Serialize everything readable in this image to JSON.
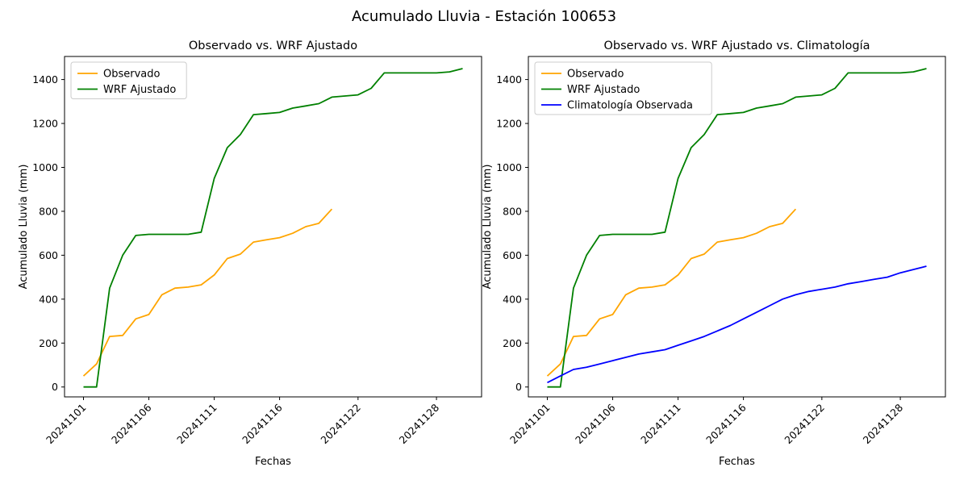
{
  "figure_title": "Acumulado Lluvia - Estación 100653",
  "chart_data": [
    {
      "type": "line",
      "title": "Observado vs. WRF Ajustado",
      "xlabel": "Fechas",
      "ylabel": "Acumulado Lluvia (mm)",
      "grid": false,
      "legend_position": "upper left",
      "ylim": [
        -45,
        1505
      ],
      "y_ticks": [
        0,
        200,
        400,
        600,
        800,
        1000,
        1200,
        1400
      ],
      "x": [
        "20241101",
        "20241102",
        "20241103",
        "20241104",
        "20241105",
        "20241106",
        "20241107",
        "20241108",
        "20241109",
        "20241110",
        "20241111",
        "20241112",
        "20241113",
        "20241114",
        "20241115",
        "20241116",
        "20241117",
        "20241118",
        "20241119",
        "20241120",
        "20241121",
        "20241122",
        "20241123",
        "20241124",
        "20241125",
        "20241126",
        "20241127",
        "20241128",
        "20241129",
        "20241130"
      ],
      "x_ticks": [
        {
          "label": "20241101",
          "index": 0
        },
        {
          "label": "20241106",
          "index": 5
        },
        {
          "label": "20241111",
          "index": 10
        },
        {
          "label": "20241116",
          "index": 15
        },
        {
          "label": "20241122",
          "index": 21
        },
        {
          "label": "20241128",
          "index": 27
        }
      ],
      "series": [
        {
          "name": "Observado",
          "color": "#FFA500",
          "values": [
            50,
            105,
            230,
            235,
            310,
            330,
            420,
            450,
            455,
            465,
            510,
            585,
            605,
            660,
            670,
            680,
            700,
            730,
            745,
            810
          ]
        },
        {
          "name": "WRF Ajustado",
          "color": "#008000",
          "values": [
            0,
            0,
            450,
            600,
            690,
            695,
            695,
            695,
            695,
            705,
            950,
            1090,
            1150,
            1240,
            1245,
            1250,
            1270,
            1280,
            1290,
            1320,
            1325,
            1330,
            1360,
            1430,
            1430,
            1430,
            1430,
            1430,
            1435,
            1450
          ]
        }
      ]
    },
    {
      "type": "line",
      "title": "Observado vs. WRF Ajustado vs. Climatología",
      "xlabel": "Fechas",
      "ylabel": "Acumulado Lluvia (mm)",
      "grid": false,
      "legend_position": "upper left",
      "ylim": [
        -45,
        1505
      ],
      "y_ticks": [
        0,
        200,
        400,
        600,
        800,
        1000,
        1200,
        1400
      ],
      "x": [
        "20241101",
        "20241102",
        "20241103",
        "20241104",
        "20241105",
        "20241106",
        "20241107",
        "20241108",
        "20241109",
        "20241110",
        "20241111",
        "20241112",
        "20241113",
        "20241114",
        "20241115",
        "20241116",
        "20241117",
        "20241118",
        "20241119",
        "20241120",
        "20241121",
        "20241122",
        "20241123",
        "20241124",
        "20241125",
        "20241126",
        "20241127",
        "20241128",
        "20241129",
        "20241130"
      ],
      "x_ticks": [
        {
          "label": "20241101",
          "index": 0
        },
        {
          "label": "20241106",
          "index": 5
        },
        {
          "label": "20241111",
          "index": 10
        },
        {
          "label": "20241116",
          "index": 15
        },
        {
          "label": "20241122",
          "index": 21
        },
        {
          "label": "20241128",
          "index": 27
        }
      ],
      "series": [
        {
          "name": "Observado",
          "color": "#FFA500",
          "values": [
            50,
            105,
            230,
            235,
            310,
            330,
            420,
            450,
            455,
            465,
            510,
            585,
            605,
            660,
            670,
            680,
            700,
            730,
            745,
            810
          ]
        },
        {
          "name": "WRF Ajustado",
          "color": "#008000",
          "values": [
            0,
            0,
            450,
            600,
            690,
            695,
            695,
            695,
            695,
            705,
            950,
            1090,
            1150,
            1240,
            1245,
            1250,
            1270,
            1280,
            1290,
            1320,
            1325,
            1330,
            1360,
            1430,
            1430,
            1430,
            1430,
            1430,
            1435,
            1450
          ]
        },
        {
          "name": "Climatología Observada",
          "color": "#0000FF",
          "values": [
            20,
            50,
            80,
            90,
            105,
            120,
            135,
            150,
            160,
            170,
            190,
            210,
            230,
            255,
            280,
            310,
            340,
            370,
            400,
            420,
            435,
            445,
            455,
            470,
            480,
            490,
            500,
            520,
            535,
            550
          ]
        }
      ]
    }
  ]
}
